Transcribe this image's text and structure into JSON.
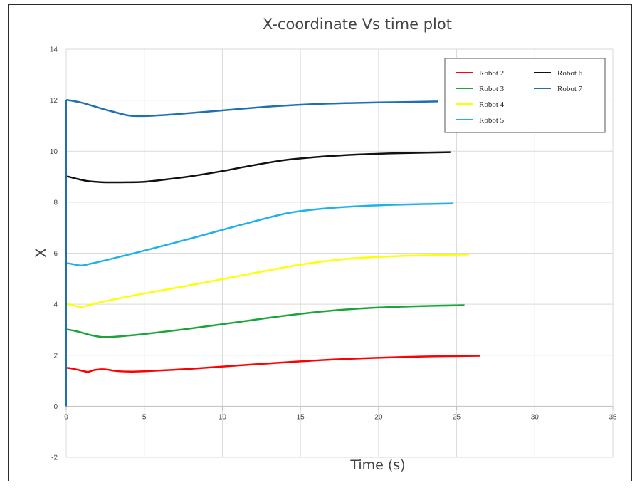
{
  "chart_data": {
    "type": "line",
    "title": "X-coordinate  Vs time plot",
    "xlabel": "Time (s)",
    "ylabel": "X",
    "xlim": [
      0,
      35
    ],
    "ylim": [
      -2,
      14
    ],
    "x_ticks": [
      0,
      5,
      10,
      15,
      20,
      25,
      30,
      35
    ],
    "y_ticks": [
      -2,
      0,
      2,
      4,
      6,
      8,
      10,
      12,
      14
    ],
    "grid": true,
    "legend_position": "top-right",
    "series": [
      {
        "name": "Robot 2",
        "color": "#ff0000",
        "x": [
          0,
          0,
          0.15,
          0.6,
          1.1,
          1.4,
          1.8,
          2.2,
          2.6,
          3.0,
          3.5,
          4.0,
          5.0,
          8.0,
          11.0,
          14.0,
          17.0,
          20.0,
          23.0,
          26.5
        ],
        "y": [
          0,
          1.5,
          1.5,
          1.45,
          1.38,
          1.35,
          1.42,
          1.45,
          1.44,
          1.4,
          1.37,
          1.36,
          1.37,
          1.47,
          1.6,
          1.72,
          1.83,
          1.9,
          1.95,
          1.98
        ]
      },
      {
        "name": "Robot 3",
        "color": "#1aa53a",
        "x": [
          0,
          0,
          0.15,
          0.8,
          1.5,
          2.2,
          3.0,
          4.0,
          5.0,
          8.0,
          11.0,
          14.0,
          17.0,
          20.0,
          23.0,
          25.5
        ],
        "y": [
          0,
          3.0,
          3.0,
          2.92,
          2.8,
          2.72,
          2.72,
          2.77,
          2.83,
          3.05,
          3.3,
          3.55,
          3.75,
          3.87,
          3.93,
          3.96
        ]
      },
      {
        "name": "Robot 4",
        "color": "#ffff00",
        "x": [
          0,
          0,
          0.15,
          0.6,
          1.0,
          1.5,
          2.0,
          3.0,
          5.0,
          8.0,
          11.0,
          15.0,
          18.0,
          21.0,
          24.0,
          25.8
        ],
        "y": [
          0,
          4.0,
          4.0,
          3.93,
          3.9,
          3.97,
          4.05,
          4.18,
          4.42,
          4.75,
          5.1,
          5.55,
          5.78,
          5.88,
          5.93,
          5.95
        ]
      },
      {
        "name": "Robot 5",
        "color": "#1fb2ea",
        "x": [
          0,
          0,
          0.15,
          0.6,
          1.0,
          1.5,
          2.5,
          5.0,
          8.0,
          11.0,
          14.0,
          16.0,
          18.0,
          21.0,
          24.8
        ],
        "y": [
          0,
          5.6,
          5.6,
          5.55,
          5.52,
          5.58,
          5.72,
          6.1,
          6.58,
          7.08,
          7.55,
          7.72,
          7.82,
          7.9,
          7.95
        ]
      },
      {
        "name": "Robot 6",
        "color": "#111111",
        "x": [
          0,
          0,
          0.15,
          0.8,
          1.5,
          2.5,
          3.5,
          5.0,
          6.5,
          8.0,
          10.0,
          12.0,
          14.0,
          16.0,
          18.0,
          20.0,
          22.0,
          24.6
        ],
        "y": [
          0,
          9.0,
          9.0,
          8.9,
          8.82,
          8.78,
          8.78,
          8.8,
          8.9,
          9.02,
          9.22,
          9.45,
          9.65,
          9.77,
          9.85,
          9.9,
          9.93,
          9.96
        ]
      },
      {
        "name": "Robot 7",
        "color": "#1f6fb5",
        "x": [
          0,
          0,
          0.15,
          1.0,
          2.0,
          3.0,
          4.0,
          5.0,
          7.0,
          10.0,
          13.0,
          16.0,
          19.0,
          22.0,
          23.8
        ],
        "y": [
          0,
          12.0,
          12.0,
          11.9,
          11.72,
          11.55,
          11.4,
          11.38,
          11.45,
          11.6,
          11.75,
          11.85,
          11.9,
          11.93,
          11.95
        ]
      }
    ]
  }
}
